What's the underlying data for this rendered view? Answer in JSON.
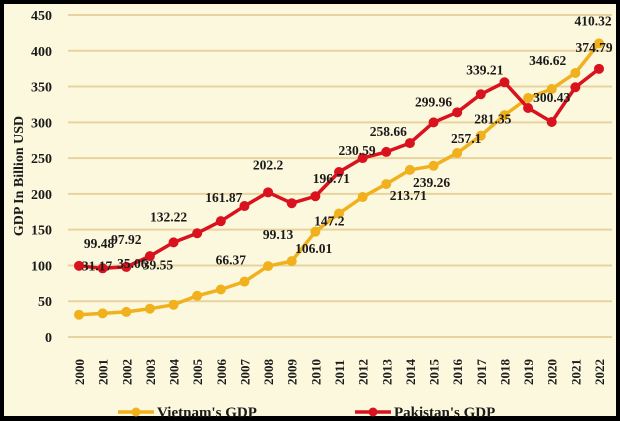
{
  "chart_data": {
    "type": "line",
    "title": "",
    "xlabel": "",
    "ylabel": "GDP In Billion USD",
    "ylim": [
      0,
      450
    ],
    "yticks": [
      0,
      50,
      100,
      150,
      200,
      250,
      300,
      350,
      400,
      450
    ],
    "grid": true,
    "legend_position": "bottom",
    "categories": [
      "2000",
      "2001",
      "2002",
      "2003",
      "2004",
      "2005",
      "2006",
      "2007",
      "2008",
      "2009",
      "2010",
      "2011",
      "2012",
      "2013",
      "2014",
      "2015",
      "2016",
      "2017",
      "2018",
      "2019",
      "2020",
      "2021",
      "2022"
    ],
    "series": [
      {
        "name": "Vietnam's GDP",
        "color": "#f0b11c",
        "values": [
          31.17,
          33,
          35.06,
          39.55,
          45,
          57.6,
          66.37,
          77.4,
          99.13,
          106.01,
          147.2,
          172.6,
          195.6,
          213.71,
          233.5,
          239.26,
          257.1,
          281.35,
          310,
          334,
          346.62,
          369,
          410.32
        ],
        "data_labels": {
          "2000": "31.17",
          "2002": "35.06",
          "2003": "39.55",
          "2006": "66.37",
          "2008": "99.13",
          "2009": "106.01",
          "2010": "147.2",
          "2013": "213.71",
          "2015": "239.26",
          "2016": "257.1",
          "2017": "281.35",
          "2020": "346.62",
          "2022": "410.32"
        }
      },
      {
        "name": "Pakistan's GDP",
        "color": "#d8121e",
        "values": [
          99.48,
          96,
          97.92,
          113,
          132.22,
          145,
          161.87,
          183,
          202.2,
          187,
          196.71,
          230.59,
          250,
          258.66,
          271,
          299.96,
          314,
          339.21,
          356,
          320,
          300.43,
          349,
          374.79
        ],
        "data_labels": {
          "2000": "99.48",
          "2002": "97.92",
          "2004": "132.22",
          "2006": "161.87",
          "2008": "202.2",
          "2010": "196.71",
          "2011": "230.59",
          "2013": "258.66",
          "2015": "299.96",
          "2017": "339.21",
          "2020": "300.43",
          "2022": "374.79"
        }
      }
    ]
  }
}
